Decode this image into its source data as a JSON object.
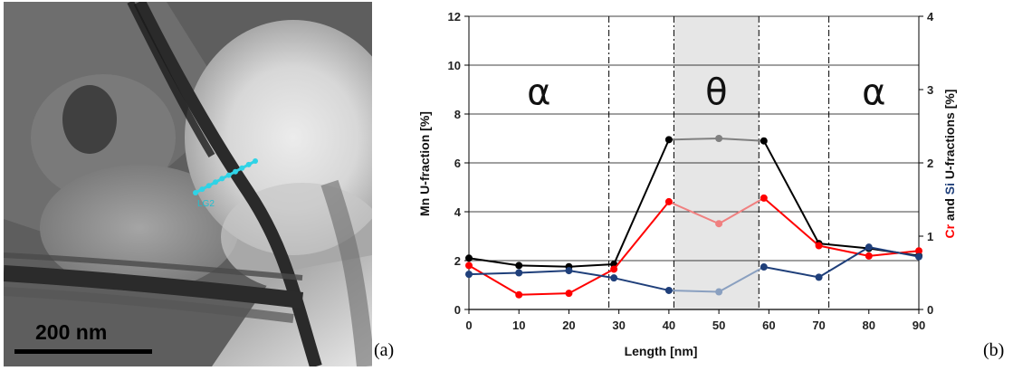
{
  "figure": {
    "panel_a_label": "(a)",
    "panel_b_label": "(b)",
    "scale_bar_label": "200 nm",
    "line_profile_label": "LG2"
  },
  "chart_data": {
    "type": "line",
    "xlabel": "Length  [nm]",
    "ylabel_left": "Mn U-fraction  [%]",
    "ylabel_right_parts": [
      {
        "text": "Cr",
        "color": "#ff0000"
      },
      {
        "text": " and ",
        "color": "#111111"
      },
      {
        "text": "Si",
        "color": "#1f3f7a"
      },
      {
        "text": " U-fractions  [%]",
        "color": "#111111"
      }
    ],
    "x_ticks": [
      0,
      10,
      20,
      30,
      40,
      50,
      60,
      70,
      80,
      90
    ],
    "xlim": [
      0,
      90
    ],
    "y_left_ticks": [
      0,
      2,
      4,
      6,
      8,
      10,
      12
    ],
    "ylim_left": [
      0,
      12
    ],
    "y_right_ticks": [
      0,
      1,
      2,
      3,
      4
    ],
    "ylim_right": [
      0,
      4
    ],
    "grid": "horizontal",
    "shaded_region": [
      41,
      58
    ],
    "shade_color": "#e6e6e6",
    "boundaries": [
      28,
      41,
      58,
      72
    ],
    "phase_labels": [
      {
        "text": "α",
        "x": 14,
        "y": 8.9
      },
      {
        "text": "θ",
        "x": 49.5,
        "y": 8.9
      },
      {
        "text": "α",
        "x": 81,
        "y": 8.9
      }
    ],
    "series": [
      {
        "axis": "left",
        "color": "#000000",
        "faded_color": "#808080",
        "x": [
          0,
          10,
          20,
          29,
          40,
          50,
          59,
          70,
          80,
          90
        ],
        "y": [
          2.1,
          1.8,
          1.75,
          1.85,
          6.95,
          7.0,
          6.9,
          2.7,
          2.5,
          2.2
        ]
      },
      {
        "axis": "right",
        "color": "#ff0000",
        "faded_color": "#f08080",
        "x": [
          0,
          10,
          20,
          29,
          40,
          50,
          59,
          70,
          80,
          90
        ],
        "y": [
          0.6,
          0.2,
          0.22,
          0.55,
          1.47,
          1.17,
          1.52,
          0.87,
          0.73,
          0.8
        ]
      },
      {
        "axis": "right",
        "color": "#1f3f7a",
        "faded_color": "#8aa0c0",
        "x": [
          0,
          10,
          20,
          29,
          40,
          50,
          59,
          70,
          80,
          90
        ],
        "y": [
          0.48,
          0.5,
          0.53,
          0.43,
          0.26,
          0.24,
          0.58,
          0.44,
          0.85,
          0.72
        ]
      }
    ]
  }
}
